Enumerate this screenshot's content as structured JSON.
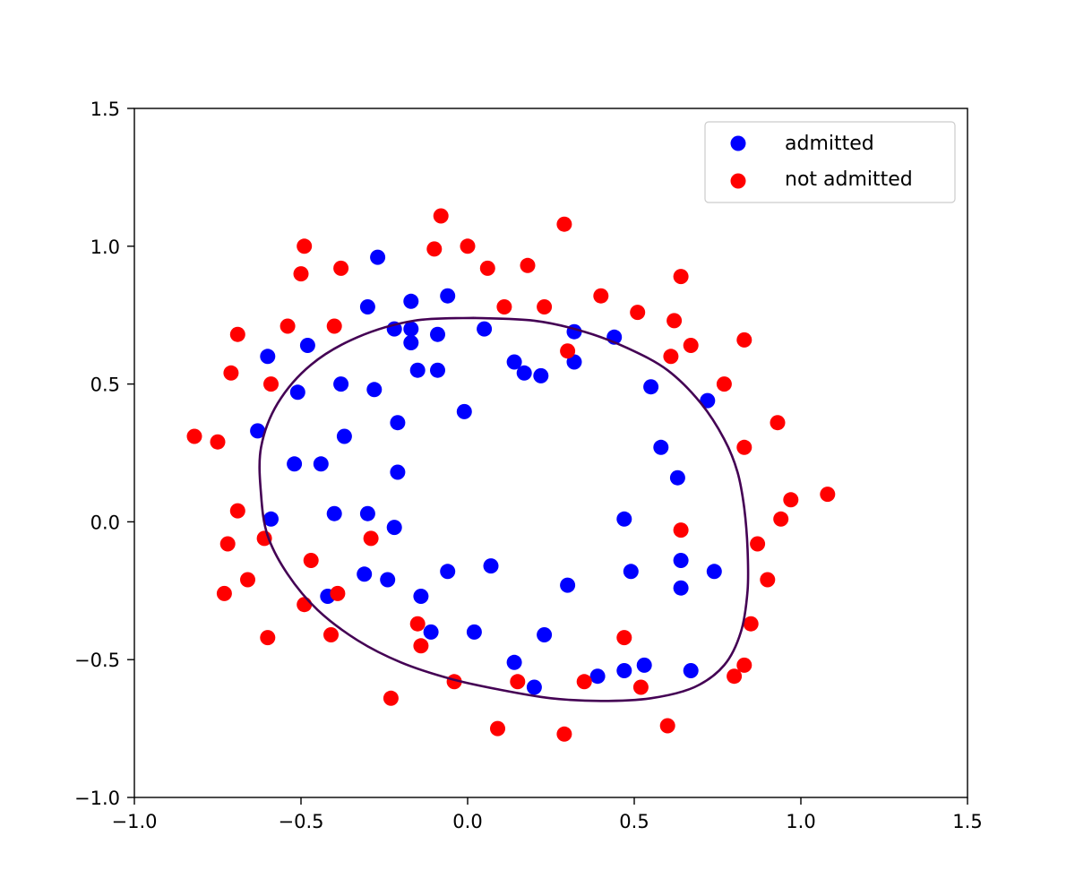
{
  "chart_data": {
    "type": "scatter",
    "title": "",
    "xlabel": "",
    "ylabel": "",
    "xlim": [
      -1.0,
      1.5
    ],
    "ylim": [
      -1.0,
      1.5
    ],
    "xticks": [
      "−1.0",
      "−0.5",
      "0.0",
      "0.5",
      "1.0",
      "1.5"
    ],
    "xtick_values": [
      -1.0,
      -0.5,
      0.0,
      0.5,
      1.0,
      1.5
    ],
    "yticks": [
      "−1.0",
      "−0.5",
      "0.0",
      "0.5",
      "1.0",
      "1.5"
    ],
    "ytick_values": [
      -1.0,
      -0.5,
      0.0,
      0.5,
      1.0,
      1.5
    ],
    "grid": false,
    "legend_position": "top-right",
    "series": [
      {
        "name": "admitted",
        "color": "#0000ff",
        "points": [
          [
            -0.27,
            0.96
          ],
          [
            -0.06,
            0.82
          ],
          [
            -0.3,
            0.78
          ],
          [
            -0.17,
            0.8
          ],
          [
            -0.22,
            0.7
          ],
          [
            -0.17,
            0.7
          ],
          [
            -0.09,
            0.68
          ],
          [
            -0.17,
            0.65
          ],
          [
            0.05,
            0.7
          ],
          [
            -0.48,
            0.64
          ],
          [
            -0.6,
            0.6
          ],
          [
            -0.15,
            0.55
          ],
          [
            -0.09,
            0.55
          ],
          [
            0.14,
            0.58
          ],
          [
            0.17,
            0.54
          ],
          [
            0.22,
            0.53
          ],
          [
            0.32,
            0.69
          ],
          [
            0.32,
            0.58
          ],
          [
            0.44,
            0.67
          ],
          [
            -0.51,
            0.47
          ],
          [
            -0.38,
            0.5
          ],
          [
            -0.28,
            0.48
          ],
          [
            -0.01,
            0.4
          ],
          [
            -0.21,
            0.36
          ],
          [
            -0.37,
            0.31
          ],
          [
            -0.63,
            0.33
          ],
          [
            -0.52,
            0.21
          ],
          [
            -0.44,
            0.21
          ],
          [
            -0.21,
            0.18
          ],
          [
            0.55,
            0.49
          ],
          [
            0.72,
            0.44
          ],
          [
            0.58,
            0.27
          ],
          [
            0.63,
            0.16
          ],
          [
            -0.59,
            0.01
          ],
          [
            -0.4,
            0.03
          ],
          [
            -0.3,
            0.03
          ],
          [
            -0.22,
            -0.02
          ],
          [
            0.47,
            0.01
          ],
          [
            -0.31,
            -0.19
          ],
          [
            -0.24,
            -0.21
          ],
          [
            -0.06,
            -0.18
          ],
          [
            0.07,
            -0.16
          ],
          [
            0.49,
            -0.18
          ],
          [
            0.64,
            -0.14
          ],
          [
            0.74,
            -0.18
          ],
          [
            -0.42,
            -0.27
          ],
          [
            -0.14,
            -0.27
          ],
          [
            0.3,
            -0.23
          ],
          [
            0.64,
            -0.24
          ],
          [
            -0.11,
            -0.4
          ],
          [
            0.02,
            -0.4
          ],
          [
            0.23,
            -0.41
          ],
          [
            0.14,
            -0.51
          ],
          [
            0.2,
            -0.6
          ],
          [
            0.39,
            -0.56
          ],
          [
            0.47,
            -0.54
          ],
          [
            0.53,
            -0.52
          ],
          [
            0.67,
            -0.54
          ]
        ]
      },
      {
        "name": "not admitted",
        "color": "#ff0000",
        "points": [
          [
            -0.08,
            1.11
          ],
          [
            0.29,
            1.08
          ],
          [
            -0.49,
            1.0
          ],
          [
            -0.1,
            0.99
          ],
          [
            0.0,
            1.0
          ],
          [
            -0.5,
            0.9
          ],
          [
            -0.38,
            0.92
          ],
          [
            0.06,
            0.92
          ],
          [
            0.18,
            0.93
          ],
          [
            0.64,
            0.89
          ],
          [
            0.4,
            0.82
          ],
          [
            0.11,
            0.78
          ],
          [
            0.23,
            0.78
          ],
          [
            0.51,
            0.76
          ],
          [
            0.62,
            0.73
          ],
          [
            -0.54,
            0.71
          ],
          [
            -0.4,
            0.71
          ],
          [
            -0.69,
            0.68
          ],
          [
            0.67,
            0.64
          ],
          [
            0.83,
            0.66
          ],
          [
            0.3,
            0.62
          ],
          [
            0.61,
            0.6
          ],
          [
            -0.71,
            0.54
          ],
          [
            -0.59,
            0.5
          ],
          [
            0.77,
            0.5
          ],
          [
            0.93,
            0.36
          ],
          [
            -0.82,
            0.31
          ],
          [
            -0.75,
            0.29
          ],
          [
            0.83,
            0.27
          ],
          [
            0.97,
            0.08
          ],
          [
            -0.69,
            0.04
          ],
          [
            0.94,
            0.01
          ],
          [
            1.08,
            0.1
          ],
          [
            -0.61,
            -0.06
          ],
          [
            -0.29,
            -0.06
          ],
          [
            0.64,
            -0.03
          ],
          [
            -0.72,
            -0.08
          ],
          [
            0.87,
            -0.08
          ],
          [
            -0.47,
            -0.14
          ],
          [
            -0.66,
            -0.21
          ],
          [
            0.9,
            -0.21
          ],
          [
            -0.73,
            -0.26
          ],
          [
            -0.39,
            -0.26
          ],
          [
            -0.49,
            -0.3
          ],
          [
            -0.15,
            -0.37
          ],
          [
            0.85,
            -0.37
          ],
          [
            -0.41,
            -0.41
          ],
          [
            -0.6,
            -0.42
          ],
          [
            0.47,
            -0.42
          ],
          [
            -0.14,
            -0.45
          ],
          [
            0.83,
            -0.52
          ],
          [
            0.8,
            -0.56
          ],
          [
            -0.04,
            -0.58
          ],
          [
            0.15,
            -0.58
          ],
          [
            0.35,
            -0.58
          ],
          [
            0.52,
            -0.6
          ],
          [
            -0.23,
            -0.64
          ],
          [
            0.6,
            -0.74
          ],
          [
            0.09,
            -0.75
          ],
          [
            0.29,
            -0.77
          ]
        ]
      }
    ],
    "decision_boundary": {
      "color": "#440154",
      "points": [
        [
          0.02,
          0.74
        ],
        [
          0.2,
          0.73
        ],
        [
          0.35,
          0.69
        ],
        [
          0.48,
          0.63
        ],
        [
          0.6,
          0.55
        ],
        [
          0.7,
          0.43
        ],
        [
          0.77,
          0.3
        ],
        [
          0.81,
          0.18
        ],
        [
          0.83,
          0.05
        ],
        [
          0.84,
          -0.1
        ],
        [
          0.84,
          -0.25
        ],
        [
          0.82,
          -0.4
        ],
        [
          0.77,
          -0.52
        ],
        [
          0.68,
          -0.6
        ],
        [
          0.55,
          -0.64
        ],
        [
          0.4,
          -0.65
        ],
        [
          0.25,
          -0.64
        ],
        [
          0.1,
          -0.61
        ],
        [
          -0.05,
          -0.57
        ],
        [
          -0.2,
          -0.51
        ],
        [
          -0.33,
          -0.43
        ],
        [
          -0.45,
          -0.32
        ],
        [
          -0.54,
          -0.19
        ],
        [
          -0.6,
          -0.05
        ],
        [
          -0.62,
          0.1
        ],
        [
          -0.62,
          0.27
        ],
        [
          -0.57,
          0.43
        ],
        [
          -0.47,
          0.57
        ],
        [
          -0.33,
          0.67
        ],
        [
          -0.16,
          0.73
        ],
        [
          0.02,
          0.74
        ]
      ]
    }
  }
}
